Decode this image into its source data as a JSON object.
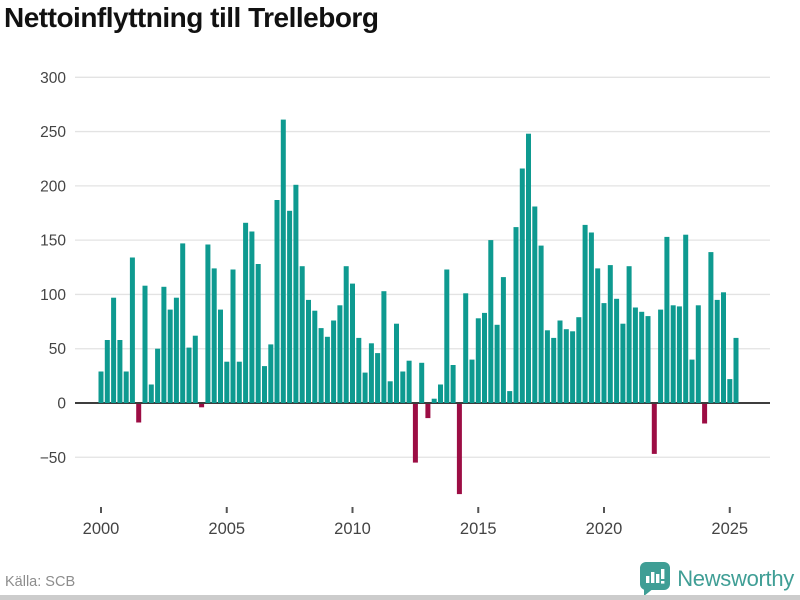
{
  "title": "Nettoinflyttning till Trelleborg",
  "source": "Källa: SCB",
  "logo": {
    "text": "Newsworthy"
  },
  "colors": {
    "positive": "#0e9a90",
    "negative": "#9c0d44",
    "grid": "#e3e3e3",
    "zero_axis": "#3d3d3d",
    "tick": "#555555",
    "axis_label": "#444444",
    "source_text": "#8d8d8d",
    "logo_teal": "#3f9e95"
  },
  "chart_data": {
    "type": "bar",
    "title": "Nettoinflyttning till Trelleborg",
    "xlabel": "",
    "ylabel": "",
    "frequency": "quarterly",
    "start_year": 2000,
    "start_quarter": 1,
    "end_year": 2025,
    "end_quarter": 2,
    "x_tick_years": [
      2000,
      2005,
      2010,
      2015,
      2020,
      2025
    ],
    "y_ticks": [
      -50,
      0,
      50,
      100,
      150,
      200,
      250,
      300
    ],
    "ylim": [
      -95,
      310
    ],
    "grid": true,
    "legend": "none",
    "values": [
      29,
      58,
      97,
      58,
      29,
      134,
      -17,
      108,
      17,
      50,
      107,
      86,
      97,
      147,
      51,
      62,
      -3,
      146,
      124,
      86,
      38,
      123,
      38,
      166,
      158,
      128,
      34,
      54,
      187,
      261,
      177,
      201,
      126,
      95,
      85,
      69,
      61,
      76,
      90,
      126,
      110,
      60,
      28,
      55,
      46,
      103,
      20,
      73,
      29,
      39,
      -54,
      37,
      -13,
      4,
      17,
      123,
      35,
      -83,
      101,
      40,
      78,
      83,
      150,
      72,
      116,
      11,
      162,
      216,
      248,
      181,
      145,
      67,
      60,
      76,
      68,
      66,
      79,
      164,
      157,
      124,
      92,
      127,
      96,
      73,
      126,
      88,
      84,
      80,
      -46,
      86,
      153,
      90,
      89,
      155,
      40,
      90,
      -18,
      139,
      95,
      102,
      22,
      60
    ]
  }
}
